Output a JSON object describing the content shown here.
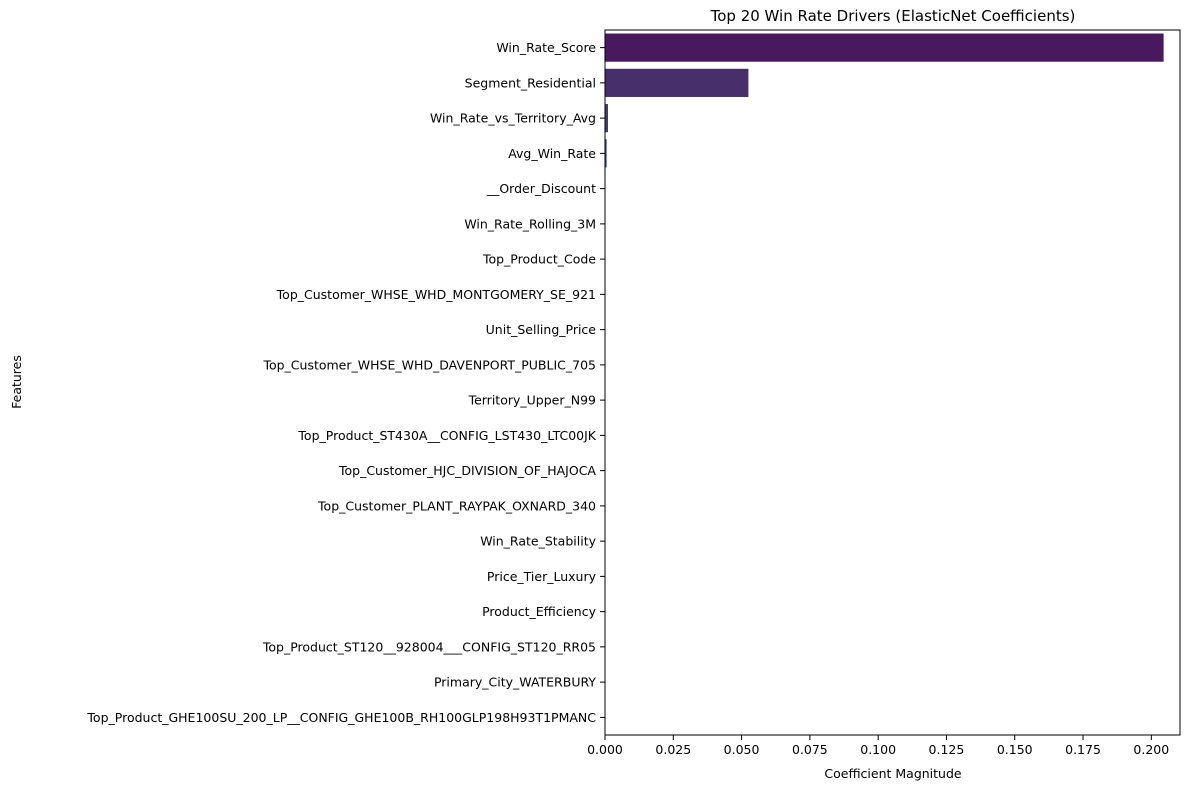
{
  "chart_data": {
    "type": "bar",
    "orientation": "horizontal",
    "title": "Top 20 Win Rate Drivers (ElasticNet Coefficients)",
    "xlabel": "Coefficient Magnitude",
    "ylabel": "Features",
    "xlim": [
      0,
      0.2105
    ],
    "xticks": [
      0.0,
      0.025,
      0.05,
      0.075,
      0.1,
      0.125,
      0.15,
      0.175,
      0.2
    ],
    "xtick_labels": [
      "0.000",
      "0.025",
      "0.050",
      "0.075",
      "0.100",
      "0.125",
      "0.150",
      "0.175",
      "0.200"
    ],
    "grid": false,
    "legend": "none",
    "categories": [
      "Win_Rate_Score",
      "Segment_Residential",
      "Win_Rate_vs_Territory_Avg",
      "Avg_Win_Rate",
      "__Order_Discount",
      "Win_Rate_Rolling_3M",
      "Top_Product_Code",
      "Top_Customer_WHSE_WHD_MONTGOMERY_SE_921",
      "Unit_Selling_Price",
      "Top_Customer_WHSE_WHD_DAVENPORT_PUBLIC_705",
      "Territory_Upper_N99",
      "Top_Product_ST430A__CONFIG_LST430_LTC00JK",
      "Top_Customer_HJC_DIVISION_OF_HAJOCA",
      "Top_Customer_PLANT_RAYPAK_OXNARD_340",
      "Win_Rate_Stability",
      "Price_Tier_Luxury",
      "Product_Efficiency",
      "Top_Product_ST120__928004___CONFIG_ST120_RR05",
      "Primary_City_WATERBURY",
      "Top_Product_GHE100SU_200_LP__CONFIG_GHE100B_RH100GLP198H93T1PMANC"
    ],
    "values": [
      0.2045,
      0.0525,
      0.0011,
      0.0006,
      0.0001,
      0.0001,
      0.0001,
      0.0001,
      0.0001,
      0.0001,
      0.0,
      0.0,
      0.0,
      0.0,
      0.0,
      0.0,
      0.0,
      0.0,
      0.0,
      0.0
    ],
    "colors": [
      "#48195f",
      "#472f6b",
      "#3f3f72",
      "#394c77",
      "#32597a",
      "#2c657c",
      "#28727c",
      "#237e7c",
      "#1f8b7a",
      "#209876",
      "#2aa36f",
      "#3baf66",
      "#55bb5b",
      "#6ec34f",
      "#8acc42",
      "#a7d436",
      "#c4da2c",
      "#dedf25",
      "#f2e425",
      "#fde725"
    ]
  }
}
